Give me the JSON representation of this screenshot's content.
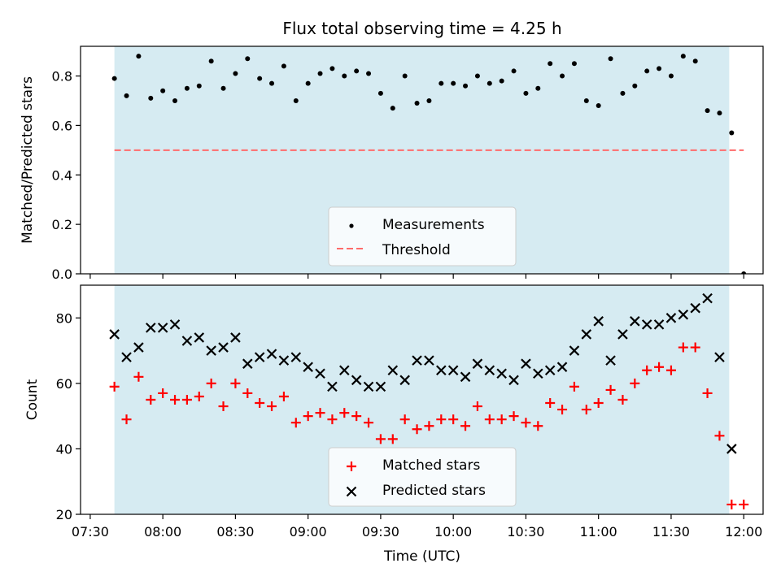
{
  "title": "Flux total observing time = 4.25 h",
  "colors": {
    "shade": "#add8e6",
    "measurement": "#000000",
    "threshold": "#ff6b6b",
    "matched": "#ff0000",
    "predicted": "#000000"
  },
  "chart_data": [
    {
      "type": "scatter",
      "ylabel": "Matched/Predicted stars",
      "xlim": [
        "07:26",
        "12:08"
      ],
      "ylim": [
        0,
        0.92
      ],
      "yticks": [
        0.0,
        0.2,
        0.4,
        0.6,
        0.8
      ],
      "ytick_labels": [
        "0.0",
        "0.2",
        "0.4",
        "0.6",
        "0.8"
      ],
      "shaded_span": [
        "07:40",
        "11:54"
      ],
      "legend_position": "lower center",
      "legend": [
        "Measurements",
        "Threshold"
      ],
      "threshold": {
        "value": 0.5,
        "x_range": [
          "07:40",
          "12:00"
        ]
      },
      "series": [
        {
          "name": "Measurements",
          "marker": "dot",
          "x": [
            "07:40",
            "07:45",
            "07:50",
            "07:55",
            "08:00",
            "08:05",
            "08:10",
            "08:15",
            "08:20",
            "08:25",
            "08:30",
            "08:35",
            "08:40",
            "08:45",
            "08:50",
            "08:55",
            "09:00",
            "09:05",
            "09:10",
            "09:15",
            "09:20",
            "09:25",
            "09:30",
            "09:35",
            "09:40",
            "09:45",
            "09:50",
            "09:55",
            "10:00",
            "10:05",
            "10:10",
            "10:15",
            "10:20",
            "10:25",
            "10:30",
            "10:35",
            "10:40",
            "10:45",
            "10:50",
            "10:55",
            "11:00",
            "11:05",
            "11:10",
            "11:15",
            "11:20",
            "11:25",
            "11:30",
            "11:35",
            "11:40",
            "11:45",
            "11:50",
            "11:55",
            "12:00"
          ],
          "y": [
            0.79,
            0.72,
            0.88,
            0.71,
            0.74,
            0.7,
            0.75,
            0.76,
            0.86,
            0.75,
            0.81,
            0.87,
            0.79,
            0.77,
            0.84,
            0.7,
            0.77,
            0.81,
            0.83,
            0.8,
            0.82,
            0.81,
            0.73,
            0.67,
            0.8,
            0.69,
            0.7,
            0.77,
            0.77,
            0.76,
            0.8,
            0.77,
            0.78,
            0.82,
            0.73,
            0.75,
            0.85,
            0.8,
            0.85,
            0.7,
            0.68,
            0.87,
            0.73,
            0.76,
            0.82,
            0.83,
            0.8,
            0.88,
            0.86,
            0.66,
            0.65,
            0.57,
            0.0
          ]
        }
      ]
    },
    {
      "type": "scatter",
      "xlabel": "Time (UTC)",
      "ylabel": "Count",
      "xlim": [
        "07:26",
        "12:08"
      ],
      "ylim": [
        20,
        90
      ],
      "yticks": [
        20,
        40,
        60,
        80
      ],
      "xticks": [
        "07:30",
        "08:00",
        "08:30",
        "09:00",
        "09:30",
        "10:00",
        "10:30",
        "11:00",
        "11:30",
        "12:00"
      ],
      "shaded_span": [
        "07:40",
        "11:54"
      ],
      "legend_position": "lower center",
      "legend": [
        "Matched stars",
        "Predicted stars"
      ],
      "series": [
        {
          "name": "Matched stars",
          "marker": "plus",
          "x": [
            "07:40",
            "07:45",
            "07:50",
            "07:55",
            "08:00",
            "08:05",
            "08:10",
            "08:15",
            "08:20",
            "08:25",
            "08:30",
            "08:35",
            "08:40",
            "08:45",
            "08:50",
            "08:55",
            "09:00",
            "09:05",
            "09:10",
            "09:15",
            "09:20",
            "09:25",
            "09:30",
            "09:35",
            "09:40",
            "09:45",
            "09:50",
            "09:55",
            "10:00",
            "10:05",
            "10:10",
            "10:15",
            "10:20",
            "10:25",
            "10:30",
            "10:35",
            "10:40",
            "10:45",
            "10:50",
            "10:55",
            "11:00",
            "11:05",
            "11:10",
            "11:15",
            "11:20",
            "11:25",
            "11:30",
            "11:35",
            "11:40",
            "11:45",
            "11:50",
            "11:55",
            "12:00"
          ],
          "y": [
            59,
            49,
            62,
            55,
            57,
            55,
            55,
            56,
            60,
            53,
            60,
            57,
            54,
            53,
            56,
            48,
            50,
            51,
            49,
            51,
            50,
            48,
            43,
            43,
            49,
            46,
            47,
            49,
            49,
            47,
            53,
            49,
            49,
            50,
            48,
            47,
            54,
            52,
            59,
            52,
            54,
            58,
            55,
            60,
            64,
            65,
            64,
            71,
            71,
            57,
            44,
            23,
            23
          ]
        },
        {
          "name": "Predicted stars",
          "marker": "x",
          "x": [
            "07:40",
            "07:45",
            "07:50",
            "07:55",
            "08:00",
            "08:05",
            "08:10",
            "08:15",
            "08:20",
            "08:25",
            "08:30",
            "08:35",
            "08:40",
            "08:45",
            "08:50",
            "08:55",
            "09:00",
            "09:05",
            "09:10",
            "09:15",
            "09:20",
            "09:25",
            "09:30",
            "09:35",
            "09:40",
            "09:45",
            "09:50",
            "09:55",
            "10:00",
            "10:05",
            "10:10",
            "10:15",
            "10:20",
            "10:25",
            "10:30",
            "10:35",
            "10:40",
            "10:45",
            "10:50",
            "10:55",
            "11:00",
            "11:05",
            "11:10",
            "11:15",
            "11:20",
            "11:25",
            "11:30",
            "11:35",
            "11:40",
            "11:45",
            "11:50",
            "11:55"
          ],
          "y": [
            75,
            68,
            71,
            77,
            77,
            78,
            73,
            74,
            70,
            71,
            74,
            66,
            68,
            69,
            67,
            68,
            65,
            63,
            59,
            64,
            61,
            59,
            59,
            64,
            61,
            67,
            67,
            64,
            64,
            62,
            66,
            64,
            63,
            61,
            66,
            63,
            64,
            65,
            70,
            75,
            79,
            67,
            75,
            79,
            78,
            78,
            80,
            81,
            83,
            86,
            68,
            40
          ]
        }
      ]
    }
  ]
}
